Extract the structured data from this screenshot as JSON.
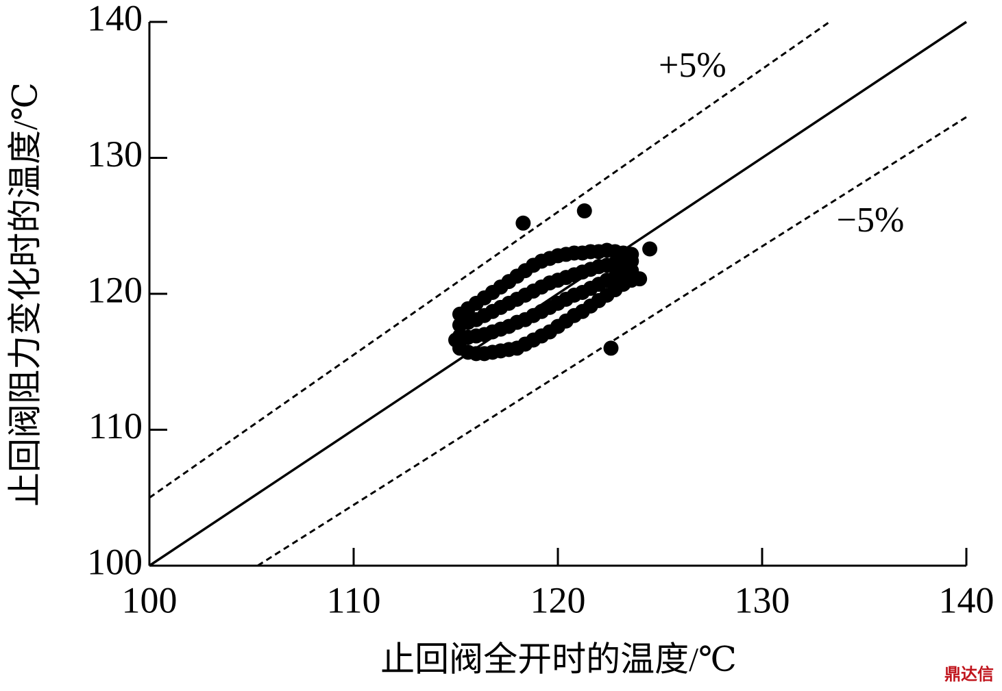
{
  "chart_data": {
    "type": "scatter",
    "x_label": "止回阀全开时的温度/℃",
    "y_label": "止回阀阻力变化时的温度/℃",
    "xlim": [
      100,
      140
    ],
    "ylim": [
      100,
      140
    ],
    "xticks": [
      100,
      110,
      120,
      130,
      140
    ],
    "yticks": [
      100,
      110,
      120,
      130,
      140
    ],
    "watermark": "鼎达信",
    "series": [
      {
        "type": "scatter",
        "color": "#000000",
        "x": [
          115.2,
          115.2,
          115.2,
          115.2,
          115.6,
          115.6,
          115.6,
          115.6,
          116.0,
          116.0,
          116.0,
          116.0,
          116.4,
          116.4,
          116.4,
          116.4,
          116.8,
          116.8,
          116.8,
          116.8,
          117.2,
          117.2,
          117.2,
          117.2,
          117.6,
          117.6,
          117.6,
          117.6,
          118.0,
          118.0,
          118.0,
          118.0,
          118.4,
          118.4,
          118.4,
          118.4,
          118.8,
          118.8,
          118.8,
          118.8,
          119.2,
          119.2,
          119.2,
          119.2,
          119.6,
          119.6,
          119.6,
          119.6,
          120.0,
          120.0,
          120.0,
          120.0,
          120.4,
          120.4,
          120.4,
          120.4,
          120.8,
          120.8,
          120.8,
          120.8,
          121.2,
          121.2,
          121.2,
          121.2,
          121.6,
          121.6,
          121.6,
          121.6,
          122.0,
          122.0,
          122.0,
          122.0,
          122.4,
          122.4,
          122.4,
          122.4,
          122.8,
          122.8,
          122.8,
          122.8,
          123.2,
          123.2,
          123.2,
          123.2,
          123.6,
          123.6,
          123.6,
          123.6,
          118.3,
          121.3,
          124.5,
          122.6,
          124.0,
          115.0
        ],
        "values": [
          116.0,
          116.9,
          117.7,
          118.5,
          115.7,
          116.8,
          117.9,
          118.9,
          115.6,
          116.9,
          118.1,
          119.3,
          115.6,
          117.0,
          118.4,
          119.7,
          115.7,
          117.2,
          118.7,
          120.1,
          115.8,
          117.4,
          119.0,
          120.5,
          115.9,
          117.6,
          119.3,
          120.9,
          116.0,
          117.9,
          119.6,
          121.3,
          116.3,
          118.1,
          119.9,
          121.7,
          116.6,
          118.4,
          120.2,
          122.1,
          116.9,
          118.7,
          120.5,
          122.4,
          117.2,
          119.0,
          120.8,
          122.6,
          117.6,
          119.3,
          121.0,
          122.8,
          118.0,
          119.6,
          121.2,
          122.9,
          118.4,
          119.9,
          121.4,
          123.0,
          118.7,
          120.1,
          121.6,
          123.0,
          119.1,
          120.4,
          121.8,
          123.1,
          119.5,
          120.7,
          122.0,
          123.1,
          119.9,
          121.0,
          122.1,
          123.2,
          120.3,
          121.2,
          122.2,
          123.1,
          120.7,
          121.5,
          122.3,
          123.0,
          121.0,
          121.7,
          122.4,
          122.9,
          125.2,
          126.1,
          123.3,
          116.0,
          121.1,
          116.6
        ]
      },
      {
        "type": "line",
        "dash": "solid",
        "color": "#000000",
        "x": [
          100,
          140
        ],
        "values": [
          100,
          140
        ]
      },
      {
        "type": "line",
        "dash": "dashed",
        "color": "#000000",
        "name": "+5%",
        "x": [
          100,
          133.3
        ],
        "values": [
          105,
          140
        ]
      },
      {
        "type": "line",
        "dash": "dashed",
        "color": "#000000",
        "name": "−5%",
        "x": [
          105.3,
          140
        ],
        "values": [
          100,
          133
        ]
      }
    ]
  }
}
